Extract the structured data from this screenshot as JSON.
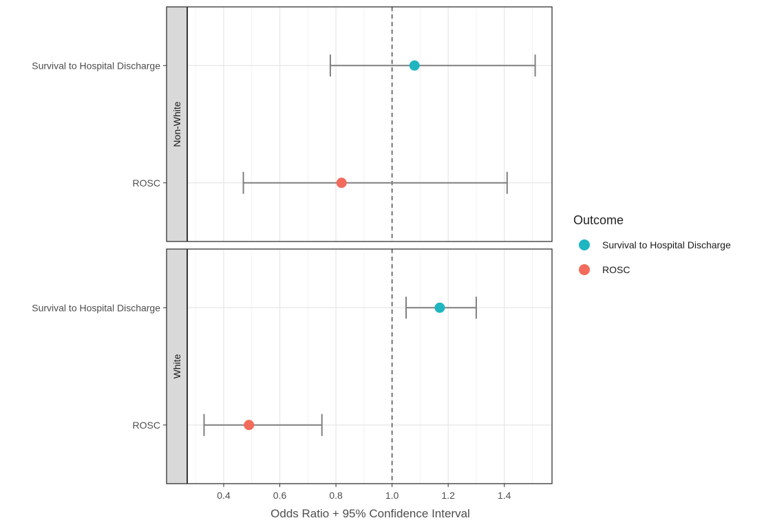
{
  "chart_data": {
    "type": "forest",
    "xlabel": "Odds Ratio + 95% Confidence Interval",
    "xlim": [
      0.27,
      1.57
    ],
    "xticks": [
      0.4,
      0.6,
      0.8,
      1.0,
      1.2,
      1.4
    ],
    "xtick_labels": [
      "0.4",
      "0.6",
      "0.8",
      "1.0",
      "1.2",
      "1.4"
    ],
    "reference_line": 1.0,
    "grid": true,
    "legend": {
      "title": "Outcome",
      "position": "right",
      "entries": [
        {
          "label": "Survival to Hospital Discharge",
          "color": "#1fb6c1"
        },
        {
          "label": "ROSC",
          "color": "#f26b5b"
        }
      ]
    },
    "panels": [
      {
        "strip_label": "Non-White",
        "rows": [
          {
            "label": "Survival to Hospital Discharge",
            "outcome": "Survival to Hospital Discharge",
            "or": 1.08,
            "lo": 0.78,
            "hi": 1.51
          },
          {
            "label": "ROSC",
            "outcome": "ROSC",
            "or": 0.82,
            "lo": 0.47,
            "hi": 1.41
          }
        ]
      },
      {
        "strip_label": "White",
        "rows": [
          {
            "label": "Survival to Hospital Discharge",
            "outcome": "Survival to Hospital Discharge",
            "or": 1.17,
            "lo": 1.05,
            "hi": 1.3
          },
          {
            "label": "ROSC",
            "outcome": "ROSC",
            "or": 0.49,
            "lo": 0.33,
            "hi": 0.75
          }
        ]
      }
    ]
  }
}
